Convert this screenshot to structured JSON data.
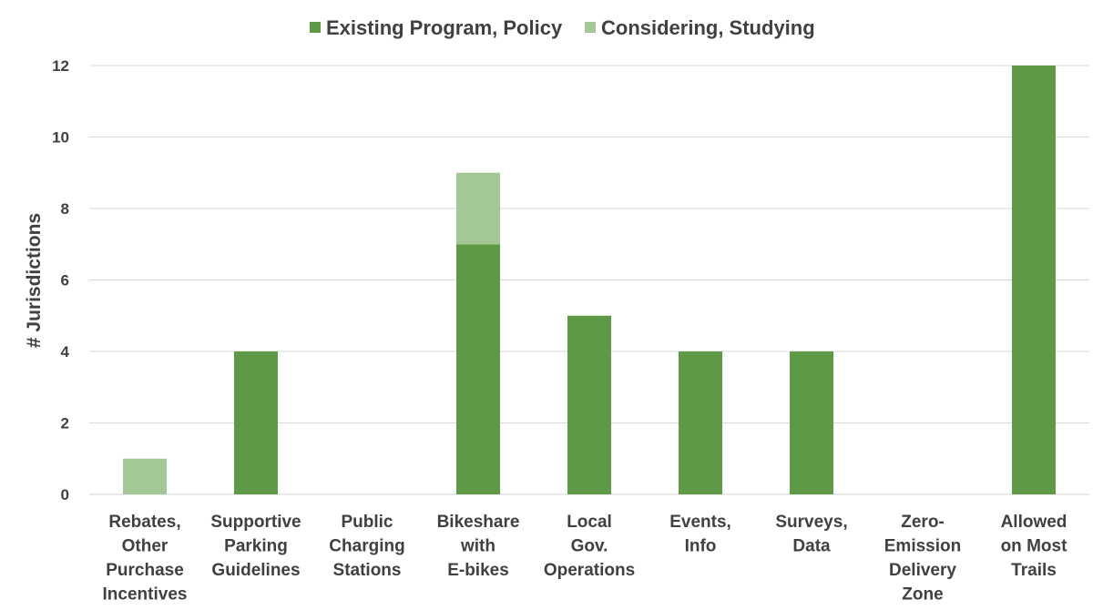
{
  "chart_data": {
    "type": "bar",
    "stacked": true,
    "ylabel": "# Jurisdictions",
    "ylim": [
      0,
      12
    ],
    "yticks": [
      0,
      2,
      4,
      6,
      8,
      10,
      12
    ],
    "grid": true,
    "legend_position": "top",
    "categories": [
      [
        "Rebates,",
        "Other",
        "Purchase",
        "Incentives"
      ],
      [
        "Supportive",
        "Parking",
        "Guidelines"
      ],
      [
        "Public",
        "Charging",
        "Stations"
      ],
      [
        "Bikeshare",
        "with",
        "E-bikes"
      ],
      [
        "Local",
        "Gov.",
        "Operations"
      ],
      [
        "Events,",
        "Info"
      ],
      [
        "Surveys,",
        "Data"
      ],
      [
        "Zero-",
        "Emission",
        "Delivery",
        "Zone"
      ],
      [
        "Allowed",
        "on Most",
        "Trails"
      ]
    ],
    "series": [
      {
        "name": "Existing Program, Policy",
        "color": "#5e9a46",
        "values": [
          0,
          4,
          0,
          7,
          5,
          4,
          4,
          0,
          12
        ]
      },
      {
        "name": "Considering, Studying",
        "color": "#a3c895",
        "values": [
          1,
          0,
          0,
          2,
          0,
          0,
          0,
          0,
          0
        ]
      }
    ]
  }
}
